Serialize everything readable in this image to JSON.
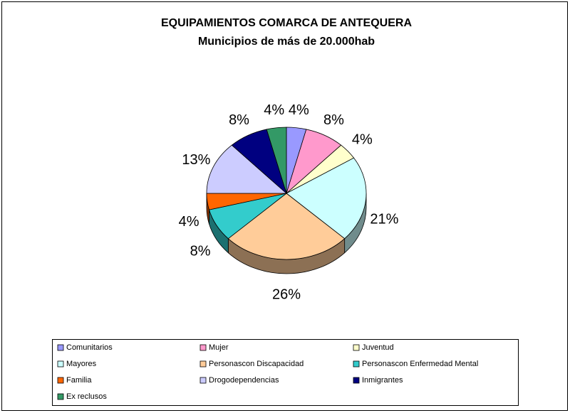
{
  "chart_data": {
    "type": "pie",
    "title": "EQUIPAMIENTOS COMARCA DE ANTEQUERA",
    "subtitle": "Municipios de más de 20.000hab",
    "categories": [
      "Comunitarios",
      "Mujer",
      "Juventud",
      "Mayores",
      "Personascon Discapacidad",
      "Personascon Enfermedad Mental",
      "Familia",
      "Drogodependencias",
      "Inmigrantes",
      "Ex reclusos"
    ],
    "values": [
      4,
      8,
      4,
      21,
      26,
      8,
      4,
      13,
      8,
      4
    ],
    "value_labels": [
      "4%",
      "8%",
      "4%",
      "21%",
      "26%",
      "8%",
      "4%",
      "13%",
      "8%",
      "4%"
    ],
    "colors": [
      "#9999ff",
      "#ff99cc",
      "#ffffcc",
      "#ccffff",
      "#ffcc99",
      "#33cccc",
      "#ff6600",
      "#ccccff",
      "#000080",
      "#339966"
    ],
    "legend": "bottom"
  }
}
